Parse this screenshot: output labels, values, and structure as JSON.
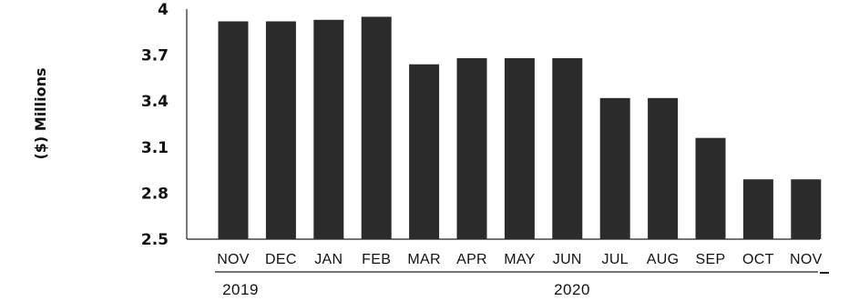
{
  "chart_data": {
    "type": "bar",
    "ylabel": "($) Millions",
    "categories": [
      "NOV",
      "DEC",
      "JAN",
      "FEB",
      "MAR",
      "APR",
      "MAY",
      "JUN",
      "JUL",
      "AUG",
      "SEP",
      "OCT",
      "NOV"
    ],
    "values": [
      3.92,
      3.92,
      3.93,
      3.95,
      3.64,
      3.68,
      3.68,
      3.68,
      3.42,
      3.42,
      3.16,
      2.89,
      2.89
    ],
    "ylim": [
      2.5,
      4.0
    ],
    "yticks": [
      "2.5",
      "2.8",
      "3.1",
      "3.4",
      "3.7",
      "4"
    ],
    "ytick_values": [
      2.5,
      2.8,
      3.1,
      3.4,
      3.7,
      4.0
    ],
    "groups": [
      {
        "label": "2019",
        "start": 0,
        "end": 0
      },
      {
        "label": "2020",
        "start": 1,
        "end": 12
      }
    ],
    "grid": false,
    "legend": "none",
    "colors": {
      "bar": "#2b2b2b",
      "axis": "#222222",
      "text": "#111111"
    }
  }
}
